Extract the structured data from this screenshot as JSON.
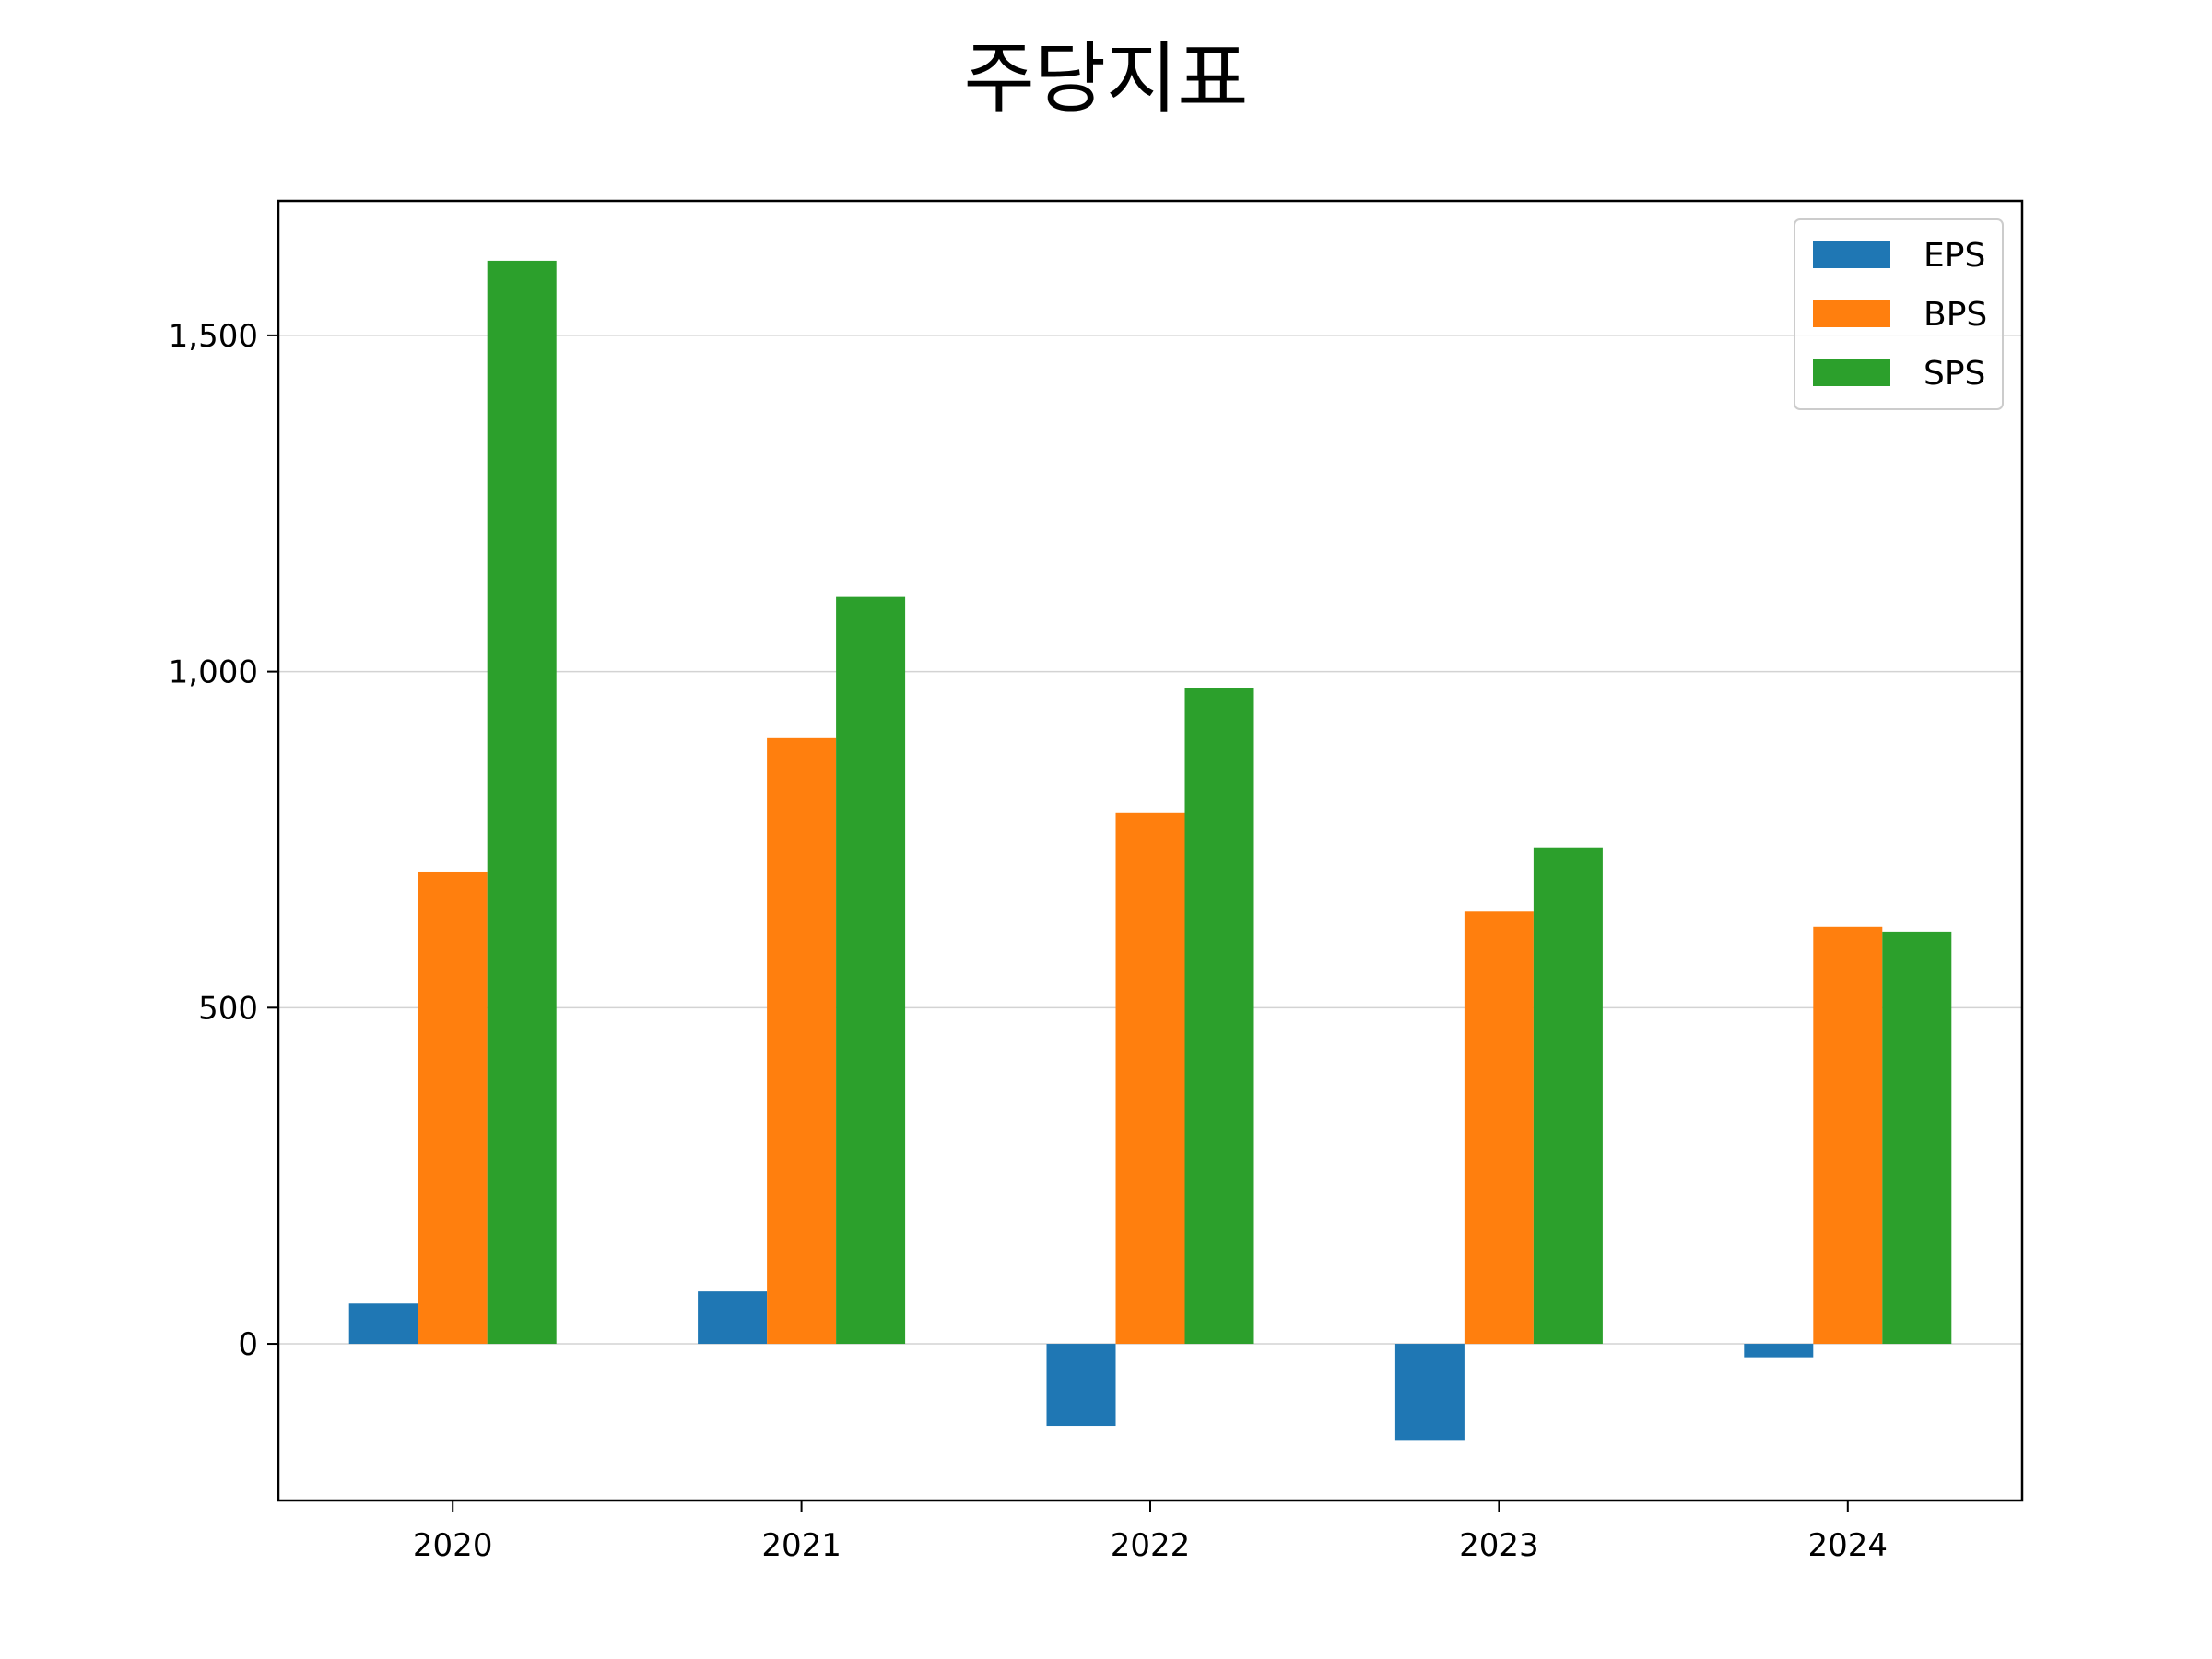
{
  "chart_data": {
    "type": "bar",
    "title": "주당지표",
    "xlabel": "",
    "ylabel": "",
    "categories": [
      "2020",
      "2021",
      "2022",
      "2023",
      "2024"
    ],
    "series": [
      {
        "name": "EPS",
        "color": "#1f77b4",
        "values": [
          60,
          78,
          -122,
          -143,
          -20
        ]
      },
      {
        "name": "BPS",
        "color": "#ff7f0e",
        "values": [
          702,
          901,
          790,
          644,
          620
        ]
      },
      {
        "name": "SPS",
        "color": "#2ca02c",
        "values": [
          1611,
          1111,
          975,
          738,
          613
        ]
      }
    ],
    "ylim": [
      -233,
      1700
    ],
    "yticks": [
      0,
      500,
      1000,
      1500
    ],
    "ytick_labels": [
      "0",
      "500",
      "1,000",
      "1,500"
    ],
    "grid": "horizontal",
    "legend_position": "top-right"
  }
}
